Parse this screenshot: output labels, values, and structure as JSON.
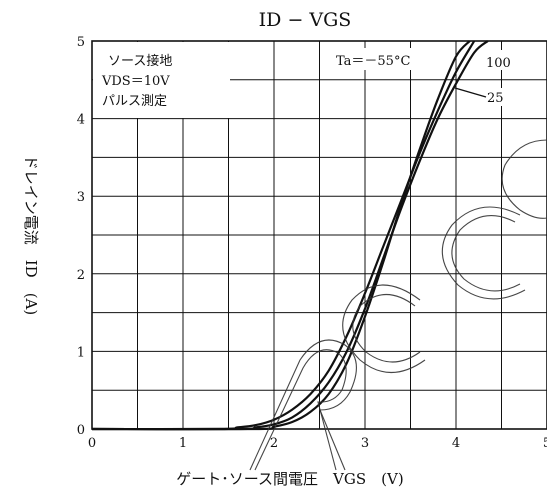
{
  "chart_data": {
    "type": "line",
    "title": "ID − VGS",
    "xlabel": "ゲート･ソース間電圧　VGS　(V)",
    "ylabel": "ドレイン電流　ID　(A)",
    "xlim": [
      0,
      5
    ],
    "ylim": [
      0,
      5
    ],
    "x_ticks": [
      "0",
      "1",
      "2",
      "3",
      "4",
      "5"
    ],
    "y_ticks": [
      "0",
      "1",
      "2",
      "3",
      "4",
      "5"
    ],
    "grid": true,
    "conditions": [
      "ソース接地",
      "VDS＝10V",
      "パルス測定"
    ],
    "series": [
      {
        "name": "Ta＝－55°C",
        "x": [
          1.4,
          1.6,
          1.8,
          2.0,
          2.2,
          2.4,
          2.6,
          2.8,
          3.0,
          3.2,
          3.4,
          3.6,
          3.8,
          4.0,
          4.2
        ],
        "y": [
          0.0,
          0.02,
          0.05,
          0.12,
          0.25,
          0.45,
          0.75,
          1.2,
          1.75,
          2.35,
          2.95,
          3.55,
          4.1,
          4.6,
          5.0
        ]
      },
      {
        "name": "25",
        "x": [
          1.6,
          1.8,
          2.0,
          2.2,
          2.4,
          2.6,
          2.8,
          3.0,
          3.2,
          3.4,
          3.6,
          3.8,
          4.0,
          4.2,
          4.35
        ],
        "y": [
          0.0,
          0.02,
          0.06,
          0.15,
          0.33,
          0.6,
          1.0,
          1.55,
          2.2,
          2.85,
          3.45,
          4.0,
          4.45,
          4.85,
          5.0
        ]
      },
      {
        "name": "100",
        "x": [
          1.8,
          2.0,
          2.2,
          2.4,
          2.6,
          2.8,
          3.0,
          3.2,
          3.4,
          3.6,
          3.8,
          4.0,
          4.15
        ],
        "y": [
          0.0,
          0.03,
          0.09,
          0.22,
          0.45,
          0.85,
          1.45,
          2.15,
          2.9,
          3.6,
          4.25,
          4.8,
          5.0
        ]
      }
    ]
  }
}
